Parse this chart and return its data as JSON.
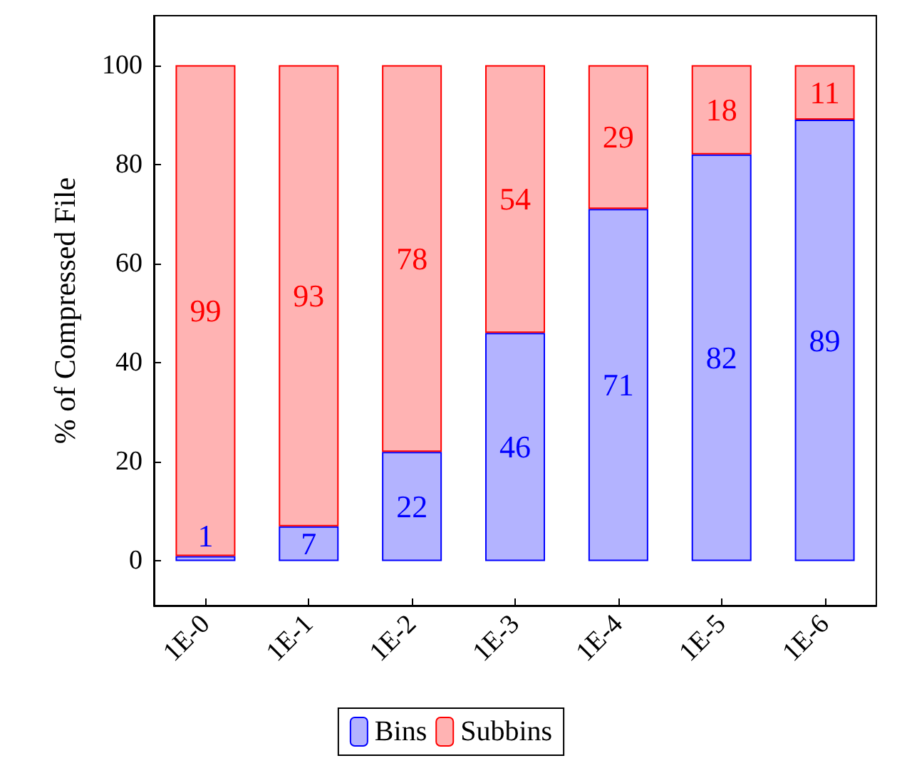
{
  "chart_data": {
    "type": "bar",
    "stacked": true,
    "ylabel": "% of Compressed File",
    "categories": [
      "1E-0",
      "1E-1",
      "1E-2",
      "1E-3",
      "1E-4",
      "1E-5",
      "1E-6"
    ],
    "series": [
      {
        "name": "Bins",
        "color": "#b3b3ff",
        "values": [
          1,
          7,
          22,
          46,
          71,
          82,
          89
        ]
      },
      {
        "name": "Subbins",
        "color": "#ffb3b3",
        "values": [
          99,
          93,
          78,
          54,
          29,
          18,
          11
        ]
      }
    ],
    "ylim": [
      -9,
      110
    ],
    "yticks": [
      0,
      20,
      40,
      60,
      80,
      100
    ],
    "data_labels": true,
    "legend": "bottom",
    "grid": false
  }
}
